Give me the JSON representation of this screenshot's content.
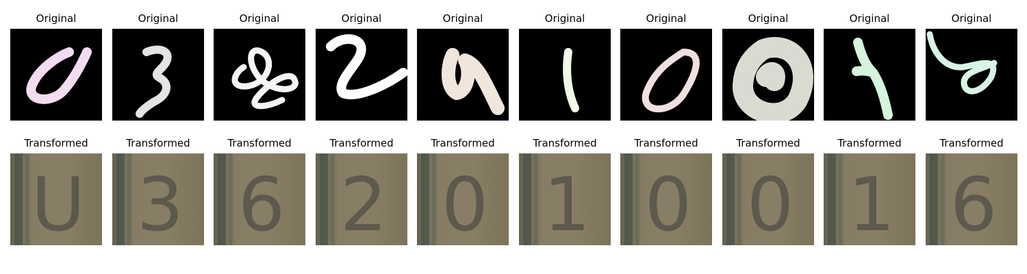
{
  "figure": {
    "row_titles": {
      "original": "Original",
      "transformed": "Transformed"
    },
    "colors": {
      "background": "#ffffff",
      "original_background": "#000000",
      "transformed_background": "#7a7058"
    },
    "samples": [
      {
        "digit": "0",
        "original_color": "#f2dcf2",
        "transformed_glyph": "U"
      },
      {
        "digit": "3",
        "original_color": "#e4e4e4",
        "transformed_glyph": "3"
      },
      {
        "digit": "8",
        "original_color": "#f4f4f4",
        "transformed_glyph": "6"
      },
      {
        "digit": "2",
        "original_color": "#ffffff",
        "transformed_glyph": "2"
      },
      {
        "digit": "9",
        "original_color": "#f0e6dc",
        "transformed_glyph": "0"
      },
      {
        "digit": "1",
        "original_color": "#f0f8e8",
        "transformed_glyph": "1"
      },
      {
        "digit": "0",
        "original_color": "#f0e0e0",
        "transformed_glyph": "0"
      },
      {
        "digit": "0",
        "original_color": "#d8dcd0",
        "transformed_glyph": "0"
      },
      {
        "digit": "1",
        "original_color": "#d4f4dc",
        "transformed_glyph": "1"
      },
      {
        "digit": "6",
        "original_color": "#d8f4e4",
        "transformed_glyph": "6"
      }
    ]
  }
}
